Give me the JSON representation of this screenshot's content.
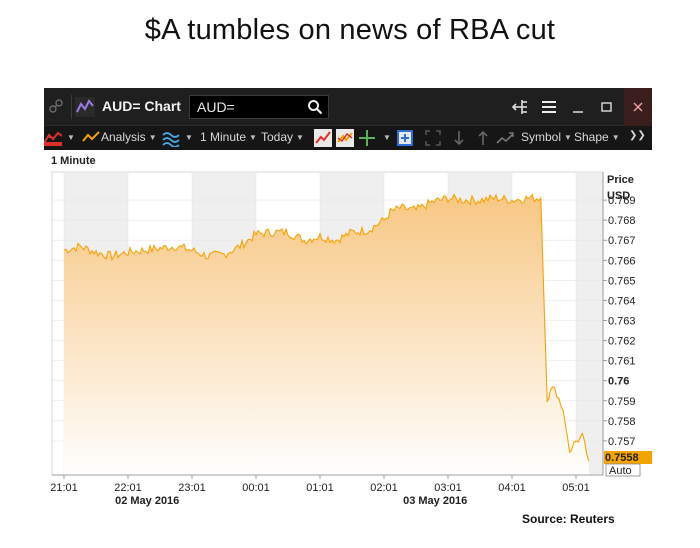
{
  "headline": "$A tumbles on news of RBA cut",
  "window": {
    "title": "AUD= Chart",
    "search_value": "AUD=",
    "icons": [
      "link-icon",
      "chart-app-icon",
      "search-icon",
      "tree-icon",
      "menu-icon",
      "minimize-icon",
      "maximize-icon",
      "close-icon"
    ]
  },
  "toolbar": {
    "analysis_label": "Analysis",
    "interval_label": "1 Minute",
    "range_label": "Today",
    "symbol_label": "Symbol",
    "shape_label": "Shape"
  },
  "chart": {
    "interval_heading": "1 Minute",
    "price_label": "Price",
    "currency_label": "USD",
    "last_price": "0.7558",
    "auto_label": "Auto",
    "colors": {
      "line": "#f5a300",
      "fill_top": "#f7c783",
      "fill_bottom": "#ffffff",
      "last_bg": "#f5a300",
      "band": "#efefef"
    }
  },
  "chart_data": {
    "type": "area",
    "title": "",
    "xlabel": "",
    "ylabel": "Price USD",
    "x_tick_labels": [
      "21:01",
      "22:01",
      "23:01",
      "00:01",
      "01:01",
      "02:01",
      "03:01",
      "04:01",
      "05:01"
    ],
    "x_date_labels": [
      {
        "label": "02 May 2016",
        "hour_index": 1.3
      },
      {
        "label": "03 May 2016",
        "hour_index": 5.8
      }
    ],
    "y_tick_labels": [
      "0.757",
      "0.758",
      "0.759",
      "0.76",
      "0.761",
      "0.762",
      "0.763",
      "0.764",
      "0.765",
      "0.766",
      "0.767",
      "0.768",
      "0.769"
    ],
    "ylim": [
      0.7553,
      0.7704
    ],
    "series": [
      {
        "x_hours": [
          0,
          0.25,
          0.5,
          0.75,
          1.0,
          1.25,
          1.5,
          1.75,
          2.0,
          2.25,
          2.5,
          2.75,
          3.0,
          3.25,
          3.5,
          3.75,
          4.0,
          4.25,
          4.5,
          4.75,
          5.0,
          5.1,
          5.25,
          5.5,
          5.75,
          6.0,
          6.25,
          6.5,
          6.75,
          7.0,
          7.25,
          7.45,
          7.5,
          7.55,
          7.6,
          7.7,
          7.8,
          7.9,
          8.0,
          8.1,
          8.2
        ],
        "values": [
          0.7665,
          0.7667,
          0.7664,
          0.7662,
          0.7664,
          0.7665,
          0.7666,
          0.7667,
          0.7665,
          0.7662,
          0.7663,
          0.7667,
          0.7673,
          0.7674,
          0.7674,
          0.767,
          0.7672,
          0.767,
          0.7674,
          0.7675,
          0.768,
          0.7684,
          0.7686,
          0.7685,
          0.7689,
          0.7691,
          0.769,
          0.769,
          0.7691,
          0.769,
          0.7691,
          0.7691,
          0.764,
          0.759,
          0.7597,
          0.7594,
          0.7585,
          0.7565,
          0.757,
          0.7572,
          0.756
        ]
      }
    ],
    "grid": true,
    "last_value": 0.7558
  },
  "source": "Source: Reuters"
}
